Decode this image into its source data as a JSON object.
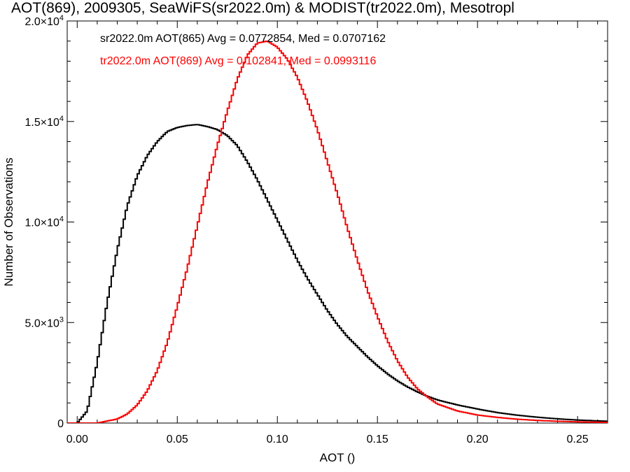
{
  "chart_data": {
    "type": "line",
    "title": "AOT(869), 2009305, SeaWiFS(sr2022.0m) & MODIST(tr2022.0m), Mesotropl",
    "xlabel": "AOT ()",
    "ylabel": "Number of Observations",
    "xlim": [
      -0.005,
      0.265
    ],
    "ylim": [
      0,
      20000
    ],
    "grid": false,
    "legend_position": "top-left (inside plot)",
    "x_ticks": [
      0.0,
      0.05,
      0.1,
      0.15,
      0.2,
      0.25
    ],
    "x_tick_labels": [
      "0.00",
      "0.05",
      "0.10",
      "0.15",
      "0.20",
      "0.25"
    ],
    "y_ticks": [
      0,
      5000,
      10000,
      15000,
      20000
    ],
    "y_tick_labels": [
      {
        "mantissa": "0",
        "exp": ""
      },
      {
        "mantissa": "5.0×10",
        "exp": "3"
      },
      {
        "mantissa": "1.0×10",
        "exp": "4"
      },
      {
        "mantissa": "1.5×10",
        "exp": "4"
      },
      {
        "mantissa": "2.0×10",
        "exp": "4"
      }
    ],
    "series": [
      {
        "name": "sr2022.0m AOT(865) Avg = 0.0772854, Med = 0.0707162",
        "color": "#000000",
        "x": [
          0.0,
          0.005,
          0.01,
          0.015,
          0.02,
          0.025,
          0.03,
          0.035,
          0.04,
          0.045,
          0.05,
          0.055,
          0.06,
          0.065,
          0.07,
          0.075,
          0.08,
          0.085,
          0.09,
          0.095,
          0.1,
          0.105,
          0.11,
          0.115,
          0.12,
          0.125,
          0.13,
          0.135,
          0.14,
          0.145,
          0.15,
          0.155,
          0.16,
          0.165,
          0.17,
          0.175,
          0.18,
          0.19,
          0.2,
          0.21,
          0.22,
          0.23,
          0.24,
          0.25,
          0.26,
          0.265
        ],
        "y": [
          0,
          600,
          3000,
          6000,
          8600,
          10800,
          12300,
          13300,
          14000,
          14500,
          14700,
          14800,
          14850,
          14750,
          14600,
          14300,
          13800,
          13000,
          12100,
          11100,
          10100,
          9100,
          8100,
          7200,
          6400,
          5600,
          4900,
          4300,
          3800,
          3300,
          2850,
          2450,
          2100,
          1800,
          1550,
          1330,
          1150,
          900,
          700,
          520,
          390,
          290,
          210,
          150,
          110,
          90
        ]
      },
      {
        "name": "tr2022.0m AOT(869) Avg = 0.102841, Med = 0.0993116",
        "color": "#ff0000",
        "x": [
          0.0,
          0.01,
          0.02,
          0.025,
          0.03,
          0.035,
          0.04,
          0.045,
          0.05,
          0.055,
          0.06,
          0.065,
          0.07,
          0.075,
          0.08,
          0.085,
          0.09,
          0.095,
          0.1,
          0.105,
          0.11,
          0.115,
          0.12,
          0.125,
          0.13,
          0.135,
          0.14,
          0.145,
          0.15,
          0.155,
          0.16,
          0.165,
          0.17,
          0.175,
          0.18,
          0.19,
          0.2,
          0.21,
          0.22,
          0.23,
          0.24,
          0.25,
          0.26,
          0.265
        ],
        "y": [
          0,
          0,
          200,
          450,
          900,
          1600,
          2600,
          4000,
          5800,
          7700,
          9800,
          11900,
          13800,
          15500,
          17100,
          18300,
          18900,
          19000,
          18700,
          18100,
          17200,
          16000,
          14600,
          13000,
          11400,
          9700,
          8100,
          6600,
          5300,
          4100,
          3100,
          2300,
          1700,
          1300,
          950,
          600,
          400,
          280,
          190,
          130,
          90,
          60,
          40,
          30
        ]
      }
    ]
  }
}
